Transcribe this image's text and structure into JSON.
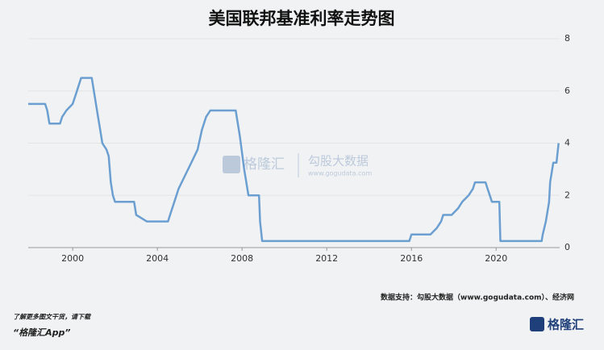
{
  "chart_data": {
    "type": "line",
    "title": "美国联邦基准利率走势图",
    "source": "数据支持：勾股大数据（www.gogudata.com）、经济网",
    "x": [
      1997.9,
      1998.7,
      1998.8,
      1998.9,
      1999.4,
      1999.5,
      1999.7,
      2000.0,
      2000.2,
      2000.4,
      2000.9,
      2001.0,
      2001.1,
      2001.2,
      2001.3,
      2001.4,
      2001.6,
      2001.7,
      2001.8,
      2001.9,
      2002.0,
      2002.9,
      2003.0,
      2003.5,
      2004.5,
      2004.6,
      2004.8,
      2005.0,
      2005.3,
      2005.6,
      2005.9,
      2006.1,
      2006.3,
      2006.5,
      2007.7,
      2007.8,
      2007.9,
      2008.1,
      2008.3,
      2008.8,
      2008.85,
      2008.95,
      2015.9,
      2016.0,
      2016.9,
      2017.2,
      2017.4,
      2017.5,
      2017.9,
      2018.2,
      2018.4,
      2018.7,
      2018.9,
      2019.0,
      2019.5,
      2019.6,
      2019.7,
      2019.8,
      2020.15,
      2020.2,
      2022.15,
      2022.2,
      2022.35,
      2022.5,
      2022.55,
      2022.7,
      2022.85,
      2022.95
    ],
    "series": [
      {
        "name": "联邦基准利率",
        "color": "#6b9fd1",
        "values": [
          5.5,
          5.5,
          5.25,
          4.75,
          4.75,
          5.0,
          5.25,
          5.5,
          6.0,
          6.5,
          6.5,
          6.0,
          5.5,
          5.0,
          4.5,
          4.0,
          3.75,
          3.5,
          2.5,
          2.0,
          1.75,
          1.75,
          1.25,
          1.0,
          1.0,
          1.25,
          1.75,
          2.25,
          2.75,
          3.25,
          3.75,
          4.5,
          5.0,
          5.25,
          5.25,
          4.75,
          4.25,
          3.0,
          2.0,
          2.0,
          1.0,
          0.25,
          0.25,
          0.5,
          0.5,
          0.75,
          1.0,
          1.25,
          1.25,
          1.5,
          1.75,
          2.0,
          2.25,
          2.5,
          2.5,
          2.25,
          2.0,
          1.75,
          1.75,
          0.25,
          0.25,
          0.5,
          1.0,
          1.75,
          2.5,
          3.25,
          3.25,
          4.0
        ]
      }
    ],
    "xlim": [
      1997.9,
      2023.0
    ],
    "xticks": [
      2000,
      2004,
      2008,
      2012,
      2016,
      2020
    ],
    "ylim": [
      0,
      8
    ],
    "yticks": [
      0,
      2,
      4,
      6,
      8
    ],
    "grid": true
  },
  "watermark": {
    "brand": "格隆汇",
    "partner": "勾股大数据",
    "url": "www.gogudata.com"
  },
  "footer": {
    "line1": "了解更多图文干货，请下载",
    "line2": "“格隆汇App”",
    "logo": "格隆汇"
  }
}
